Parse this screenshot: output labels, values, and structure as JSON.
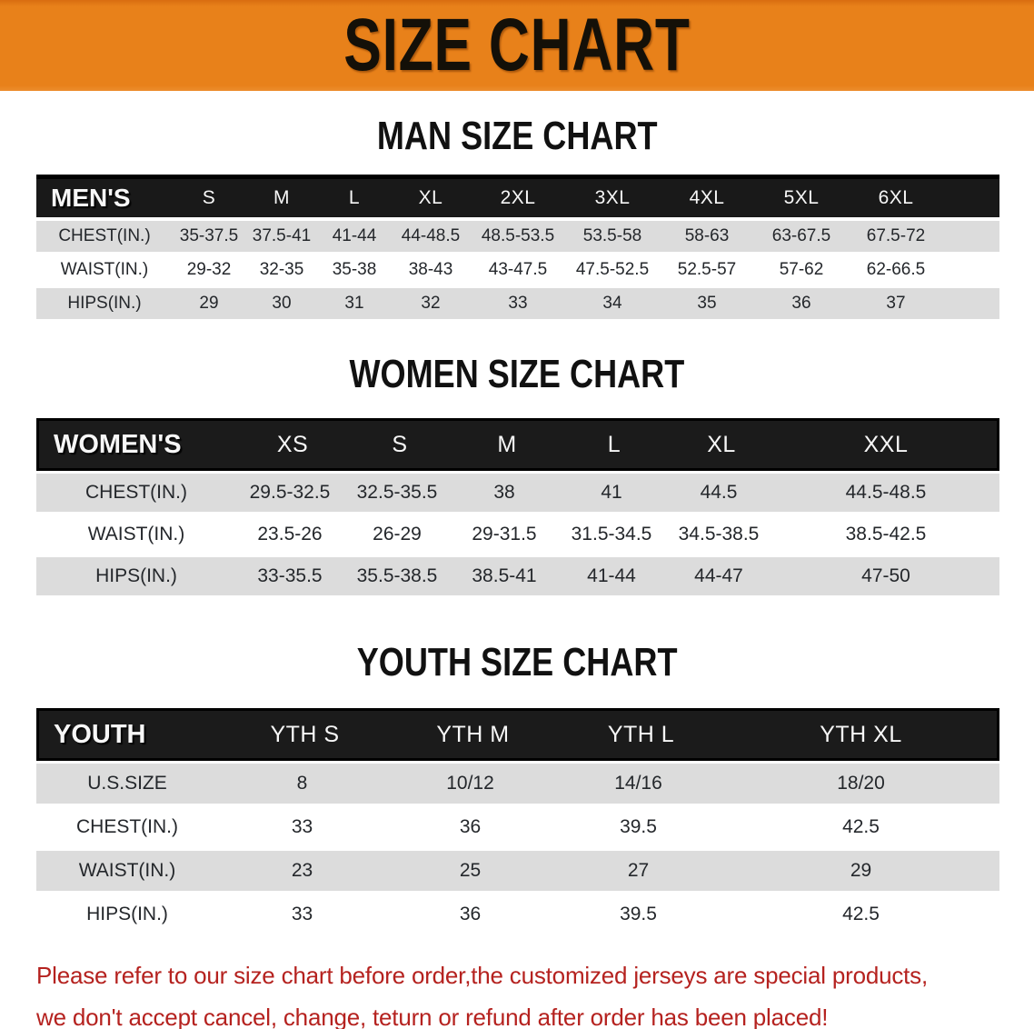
{
  "banner": {
    "title": "SIZE CHART",
    "background_color": "#E8811A",
    "text_color": "#141008"
  },
  "colors": {
    "header_bar": "#1B1B1B",
    "row_gray": "#DCDCDC",
    "row_white": "#FFFFFF",
    "notice_red": "#B5221F"
  },
  "chart_data": [
    {
      "type": "table",
      "title": "MAN SIZE CHART",
      "header_label": "MEN'S",
      "columns": [
        "S",
        "M",
        "L",
        "XL",
        "2XL",
        "3XL",
        "4XL",
        "5XL",
        "6XL"
      ],
      "rows": [
        {
          "label": "CHEST(IN.)",
          "values": [
            "35-37.5",
            "37.5-41",
            "41-44",
            "44-48.5",
            "48.5-53.5",
            "53.5-58",
            "58-63",
            "63-67.5",
            "67.5-72"
          ]
        },
        {
          "label": "WAIST(IN.)",
          "values": [
            "29-32",
            "32-35",
            "35-38",
            "38-43",
            "43-47.5",
            "47.5-52.5",
            "52.5-57",
            "57-62",
            "62-66.5"
          ]
        },
        {
          "label": "HIPS(IN.)",
          "values": [
            "29",
            "30",
            "31",
            "32",
            "33",
            "34",
            "35",
            "36",
            "37"
          ]
        }
      ]
    },
    {
      "type": "table",
      "title": "WOMEN SIZE CHART",
      "header_label": "WOMEN'S",
      "columns": [
        "XS",
        "S",
        "M",
        "L",
        "XL",
        "XXL"
      ],
      "rows": [
        {
          "label": "CHEST(IN.)",
          "values": [
            "29.5-32.5",
            "32.5-35.5",
            "38",
            "41",
            "44.5",
            "44.5-48.5"
          ]
        },
        {
          "label": "WAIST(IN.)",
          "values": [
            "23.5-26",
            "26-29",
            "29-31.5",
            "31.5-34.5",
            "34.5-38.5",
            "38.5-42.5"
          ]
        },
        {
          "label": "HIPS(IN.)",
          "values": [
            "33-35.5",
            "35.5-38.5",
            "38.5-41",
            "41-44",
            "44-47",
            "47-50"
          ]
        }
      ]
    },
    {
      "type": "table",
      "title": "YOUTH SIZE CHART",
      "header_label": "YOUTH",
      "columns": [
        "YTH S",
        "YTH M",
        "YTH L",
        "YTH XL"
      ],
      "rows": [
        {
          "label": "U.S.SIZE",
          "values": [
            "8",
            "10/12",
            "14/16",
            "18/20"
          ]
        },
        {
          "label": "CHEST(IN.)",
          "values": [
            "33",
            "36",
            "39.5",
            "42.5"
          ]
        },
        {
          "label": "WAIST(IN.)",
          "values": [
            "23",
            "25",
            "27",
            "29"
          ]
        },
        {
          "label": "HIPS(IN.)",
          "values": [
            "33",
            "36",
            "39.5",
            "42.5"
          ]
        }
      ]
    }
  ],
  "notice": {
    "line1": "Please refer to our size chart before order,the customized jerseys are special products,",
    "line2": "we don't accept cancel, change, teturn or refund after order has been placed!"
  }
}
